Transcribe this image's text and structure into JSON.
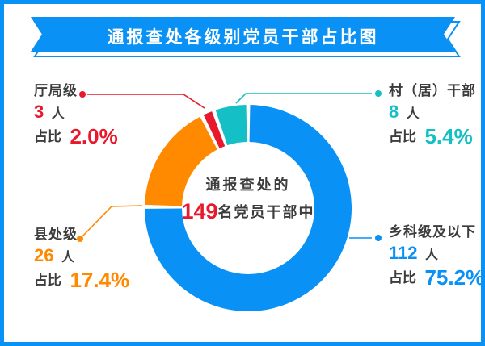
{
  "page": {
    "background": "#ffffff",
    "border_color": "#0991f5"
  },
  "banner": {
    "title": "通报查处各级别党员干部占比图",
    "fill": "#0991f5",
    "text_color": "#ffffff"
  },
  "center": {
    "line1": "通报查处的",
    "big_number": "149",
    "line2_suffix": "名党员干部中",
    "number_color": "#e8192d"
  },
  "labels": {
    "unit": "人",
    "ratio_prefix": "占比"
  },
  "chart_data": {
    "type": "donut",
    "title": "通报查处各级别党员干部占比图",
    "total": 149,
    "center_text": "通报查处的149名党员干部中",
    "start_angle_deg": 0,
    "direction": "clockwise",
    "gap_deg": 2.2,
    "outer_radius": 128,
    "inner_radius": 82,
    "legend_position": "callout-labels",
    "segments": [
      {
        "label": "乡科级及以下",
        "value": 112,
        "pct": 75.2,
        "pct_text": "75.2%",
        "color": "#0991f5"
      },
      {
        "label": "县处级",
        "value": 26,
        "pct": 17.4,
        "pct_text": "17.4%",
        "color": "#ff8a00"
      },
      {
        "label": "厅局级",
        "value": 3,
        "pct": 2.0,
        "pct_text": "2.0%",
        "color": "#e8192d"
      },
      {
        "label": "村（居）干部",
        "value": 8,
        "pct": 5.4,
        "pct_text": "5.4%",
        "color": "#14bfc6"
      }
    ]
  }
}
